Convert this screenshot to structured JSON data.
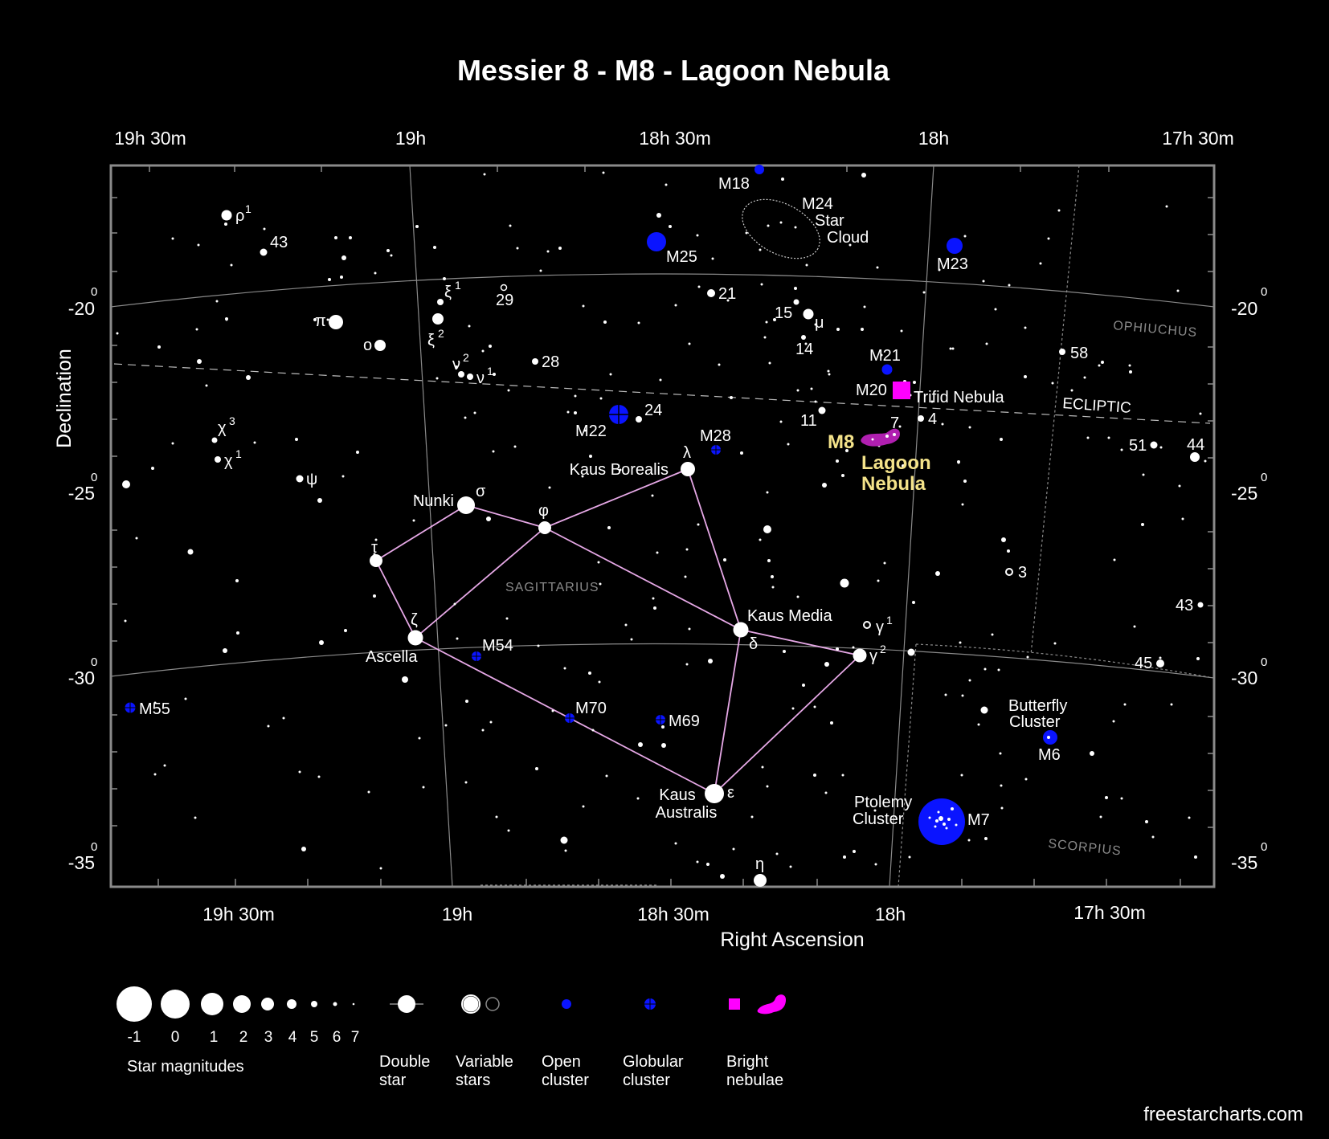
{
  "title": "Messier 8 - M8 - Lagoon Nebula",
  "axis": {
    "x_label": "Right Ascension",
    "y_label": "Declination",
    "top_ra_ticks": [
      "19h 30m",
      "19h",
      "18h 30m",
      "18h",
      "17h 30m"
    ],
    "bottom_ra_ticks": [
      "19h 30m",
      "19h",
      "18h 30m",
      "18h",
      "17h 30m"
    ],
    "dec_ticks": [
      {
        "value": "-20",
        "sup": "0"
      },
      {
        "value": "-25",
        "sup": "0"
      },
      {
        "value": "-30",
        "sup": "0"
      },
      {
        "value": "-35",
        "sup": "0"
      }
    ]
  },
  "constellations": {
    "sagittarius": "Sagittarius",
    "ophiuchus": "Ophiuchus",
    "scorpius": "Scorpius",
    "ecliptic": "ECLIPTIC"
  },
  "target": {
    "code": "M8",
    "name_line1": "Lagoon",
    "name_line2": "Nebula"
  },
  "star_labels": {
    "nunki": "Nunki",
    "sigma": "σ",
    "phi": "φ",
    "lambda": "λ",
    "kaus_borealis": "Kaus Borealis",
    "tau": "τ",
    "zeta": "ζ",
    "ascella": "Ascella",
    "kaus_media": "Kaus Media",
    "delta": "δ",
    "gamma1": "γ",
    "gamma1_sup": "1",
    "gamma2": "γ",
    "gamma2_sup": "2",
    "kaus_australis_1": "Kaus",
    "kaus_australis_2": "Australis",
    "epsilon": "ε",
    "eta": "η",
    "rho1": "ρ",
    "rho1_sup": "1",
    "pi": "π",
    "omicron": "ο",
    "xi1": "ξ",
    "xi1_sup": "1",
    "xi2": "ξ",
    "xi2_sup": "2",
    "nu2": "ν",
    "nu2_sup": "2",
    "nu1": "ν",
    "nu1_sup": "1",
    "chi3": "χ",
    "chi3_sup": "3",
    "chi1": "χ",
    "chi1_sup": "1",
    "psi": "ψ",
    "mu": "μ",
    "n43a": "43",
    "n29": "29",
    "n28": "28",
    "n21": "21",
    "n15": "15",
    "n14": "14",
    "n24": "24",
    "n11": "11",
    "n7": "7",
    "n4": "4",
    "n58": "58",
    "n51": "51",
    "n44": "44",
    "n3": "3",
    "n43b": "43",
    "n45": "45"
  },
  "deep_sky_labels": {
    "m18": "M18",
    "m24_1": "M24",
    "m24_2": "Star",
    "m24_3": "Cloud",
    "m25": "M25",
    "m23": "M23",
    "m21": "M21",
    "m20": "M20",
    "trifid": "Trifid Nebula",
    "m22": "M22",
    "m28": "M28",
    "m54": "M54",
    "m55": "M55",
    "m70": "M70",
    "m69": "M69",
    "m6": "M6",
    "m7": "M7",
    "butterfly_1": "Butterfly",
    "butterfly_2": "Cluster",
    "ptolemy_1": "Ptolemy",
    "ptolemy_2": "Cluster"
  },
  "legend": {
    "magnitudes": [
      "-1",
      "0",
      "1",
      "2",
      "3",
      "4",
      "5",
      "6",
      "7"
    ],
    "star_magnitudes": "Star magnitudes",
    "double_1": "Double",
    "double_2": "star",
    "variable_1": "Variable",
    "variable_2": "stars",
    "open_1": "Open",
    "open_2": "cluster",
    "globular_1": "Globular",
    "globular_2": "cluster",
    "bright_1": "Bright",
    "bright_2": "nebulae"
  },
  "credit": "freestarcharts.com",
  "colors": {
    "background": "#000000",
    "star": "#ffffff",
    "open_cluster": "#0a14ff",
    "nebula": "#ff00ff",
    "target_nebula": "#b01fb0",
    "asterism_lines": "#e6a8e6",
    "target_label": "#f4e38a",
    "grid": "#8a8a8a"
  }
}
